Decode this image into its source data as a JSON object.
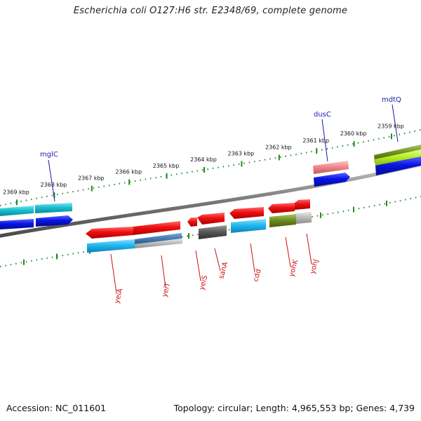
{
  "title": "Escherichia coli O127:H6 str. E2348/69, complete genome",
  "footer": {
    "accession": "Accession: NC_011601",
    "summary": "Topology: circular; Length: 4,965,553 bp; Genes: 4,739"
  },
  "outer_ruler": [
    "2369 kbp",
    "2368 kbp",
    "2367 kbp",
    "2366 kbp",
    "2365 kbp",
    "2364 kbp",
    "2363 kbp",
    "2362 kbp",
    "2361 kbp",
    "2360 kbp",
    "2359 kbp"
  ],
  "gene_labels_top": [
    "mglC",
    "dusC",
    "mdtQ"
  ],
  "gene_labels_bottom": [
    "yeiA",
    "yeiT",
    "yeiS",
    "sanA",
    "cdd",
    "yohK",
    "yohJ"
  ],
  "colors": {
    "gene_red": "#e01010",
    "gene_blue": "#0a14e6",
    "cyan": "#17bfd0",
    "sky": "#20b8f0",
    "olive": "#6e8e1e",
    "lime": "#b6f020",
    "pink": "#f08a8a",
    "grey": "#5a5a5a",
    "tick_green": "#228b22",
    "backbone": "#7a7a7a"
  }
}
